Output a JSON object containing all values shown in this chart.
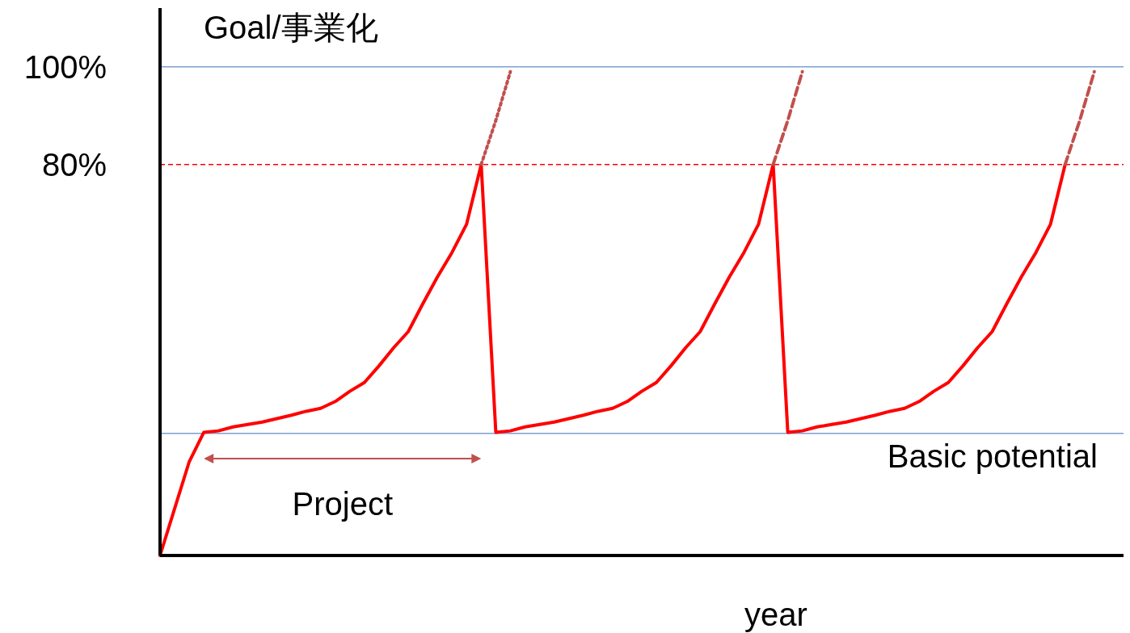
{
  "chart_data": {
    "type": "line",
    "ylabel": "Goal/事業化",
    "xlabel": "year",
    "ylim": [
      0,
      112
    ],
    "yticks": [
      {
        "value": 100,
        "label": "100%"
      },
      {
        "value": 80,
        "label": "80%"
      }
    ],
    "marker": "none",
    "categories": [
      null,
      null,
      null,
      null,
      null,
      null,
      null,
      null,
      null,
      null,
      null,
      null,
      null,
      null,
      null,
      null,
      null,
      null,
      null,
      null,
      null,
      null,
      null,
      null,
      null,
      null,
      null,
      null,
      null,
      null,
      null,
      null,
      null,
      null,
      null,
      null,
      null,
      null,
      null,
      null,
      null,
      null,
      null,
      null,
      null,
      null,
      null,
      null,
      null,
      null,
      null,
      null,
      null,
      null,
      null,
      null,
      null,
      null,
      null,
      null,
      null,
      null,
      null,
      null,
      null,
      null,
      null
    ],
    "series": [
      {
        "color": "#ff0000",
        "values": [
          0,
          9.6,
          19.2,
          25.2,
          25.5,
          26.3,
          26.8,
          27.3,
          28,
          28.7,
          29.5,
          30.1,
          31.5,
          33.6,
          35.4,
          38.8,
          42.5,
          45.8,
          51.5,
          57,
          62,
          67.8,
          80,
          25.2,
          25.5,
          26.3,
          26.8,
          27.3,
          28,
          28.7,
          29.5,
          30.1,
          31.5,
          33.6,
          35.4,
          38.8,
          42.5,
          45.8,
          51.5,
          57,
          62,
          67.8,
          80,
          25.2,
          25.5,
          26.3,
          26.8,
          27.3,
          28,
          28.7,
          29.5,
          30.1,
          31.5,
          33.6,
          35.4,
          38.8,
          42.5,
          45.8,
          51.5,
          57,
          62,
          67.8,
          80,
          null,
          null,
          null,
          null
        ]
      },
      {
        "color": "#c0504d",
        "line_style": "dotted",
        "values": [
          null,
          null,
          null,
          null,
          null,
          null,
          null,
          null,
          null,
          null,
          null,
          null,
          null,
          null,
          null,
          null,
          null,
          null,
          null,
          null,
          null,
          null,
          80,
          89,
          99,
          null,
          null,
          null,
          null,
          null,
          null,
          null,
          null,
          null,
          null,
          null,
          null,
          null,
          null,
          null,
          null,
          null,
          null,
          null,
          null,
          null,
          null,
          null,
          null,
          null,
          null,
          null,
          null,
          null,
          null,
          null,
          null,
          null,
          null,
          null,
          null,
          null,
          null,
          null,
          null,
          null,
          null
        ]
      },
      {
        "color": "#c0504d",
        "line_style": "dashed",
        "values": [
          null,
          null,
          null,
          null,
          null,
          null,
          null,
          null,
          null,
          null,
          null,
          null,
          null,
          null,
          null,
          null,
          null,
          null,
          null,
          null,
          null,
          null,
          null,
          null,
          null,
          null,
          null,
          null,
          null,
          null,
          null,
          null,
          null,
          null,
          null,
          null,
          null,
          null,
          null,
          null,
          null,
          null,
          80,
          89,
          99,
          null,
          null,
          null,
          null,
          null,
          null,
          null,
          null,
          null,
          null,
          null,
          null,
          null,
          null,
          null,
          null,
          null,
          null,
          null,
          null,
          null,
          null
        ]
      },
      {
        "color": "#c0504d",
        "line_style": "dashed",
        "values": [
          null,
          null,
          null,
          null,
          null,
          null,
          null,
          null,
          null,
          null,
          null,
          null,
          null,
          null,
          null,
          null,
          null,
          null,
          null,
          null,
          null,
          null,
          null,
          null,
          null,
          null,
          null,
          null,
          null,
          null,
          null,
          null,
          null,
          null,
          null,
          null,
          null,
          null,
          null,
          null,
          null,
          null,
          null,
          null,
          null,
          null,
          null,
          null,
          null,
          null,
          null,
          null,
          null,
          null,
          null,
          null,
          null,
          null,
          null,
          null,
          null,
          null,
          80,
          89,
          99,
          null,
          null
        ]
      }
    ],
    "ref_lines": [
      {
        "axis": "y",
        "value": 100,
        "color": "#7f9fcf",
        "line_style": "solid"
      },
      {
        "axis": "y",
        "value": 80,
        "color": "#ff0000",
        "line_style": "dashed"
      },
      {
        "axis": "y",
        "value": 25,
        "color": "#7f9fcf",
        "line_style": "solid",
        "label": "Basic potential"
      }
    ],
    "annotations": [
      "Project"
    ]
  }
}
